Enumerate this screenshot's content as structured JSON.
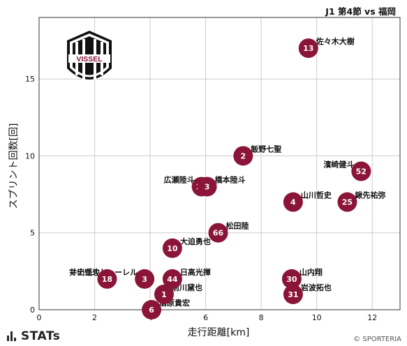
{
  "header": {
    "title": "J1 第4節 vs 福岡"
  },
  "footer": {
    "brand": "STATs",
    "copyright": "© SPORTERIA"
  },
  "logo": {
    "text": "VISSEL"
  },
  "colors": {
    "marker": "#8a1538",
    "grid": "#cccccc",
    "marker_text": "#ffffff"
  },
  "chart_data": {
    "type": "scatter",
    "xlabel": "走行距離[km]",
    "ylabel": "スプリント回数[回]",
    "xlim": [
      0,
      13
    ],
    "ylim": [
      0,
      19
    ],
    "xticks": [
      0,
      2,
      4,
      6,
      8,
      10,
      12
    ],
    "yticks": [
      0,
      5,
      10,
      15
    ],
    "grid": true,
    "points": [
      {
        "number": "13",
        "name": "佐々木大樹",
        "x": 9.7,
        "y": 17,
        "label_side": "right"
      },
      {
        "number": "2",
        "name": "飯野七聖",
        "x": 7.35,
        "y": 10,
        "label_side": "right"
      },
      {
        "number": "52",
        "name": "濱崎健斗",
        "x": 11.6,
        "y": 9,
        "label_side": "left"
      },
      {
        "number": "23",
        "name": "広瀬陸斗",
        "x": 5.85,
        "y": 8,
        "label_side": "left"
      },
      {
        "number": "3",
        "name": "橋本陸斗",
        "x": 6.05,
        "y": 8,
        "label_side": "right"
      },
      {
        "number": "4",
        "name": "山川哲史",
        "x": 9.15,
        "y": 7,
        "label_side": "right"
      },
      {
        "number": "25",
        "name": "鍬先祐弥",
        "x": 11.1,
        "y": 7,
        "label_side": "right"
      },
      {
        "number": "66",
        "name": "松田陸",
        "x": 6.45,
        "y": 5,
        "label_side": "right"
      },
      {
        "number": "10",
        "name": "大迫勇也",
        "x": 4.8,
        "y": 4,
        "label_side": "right"
      },
      {
        "number": "18",
        "name": "井出遥也",
        "x": 2.45,
        "y": 2,
        "label_side": "left"
      },
      {
        "number": "3",
        "name": "マテウストゥーレル",
        "x": 3.8,
        "y": 2,
        "label_side": "left"
      },
      {
        "number": "44",
        "name": "日高光揮",
        "x": 4.8,
        "y": 2,
        "label_side": "right"
      },
      {
        "number": "30",
        "name": "山内翔",
        "x": 9.1,
        "y": 2,
        "label_side": "right"
      },
      {
        "number": "1",
        "name": "前川黛也",
        "x": 4.5,
        "y": 1,
        "label_side": "right"
      },
      {
        "number": "31",
        "name": "岩波拓也",
        "x": 9.15,
        "y": 1,
        "label_side": "right"
      },
      {
        "number": "6",
        "name": "扇原貴宏",
        "x": 4.05,
        "y": 0,
        "label_side": "right"
      }
    ]
  }
}
